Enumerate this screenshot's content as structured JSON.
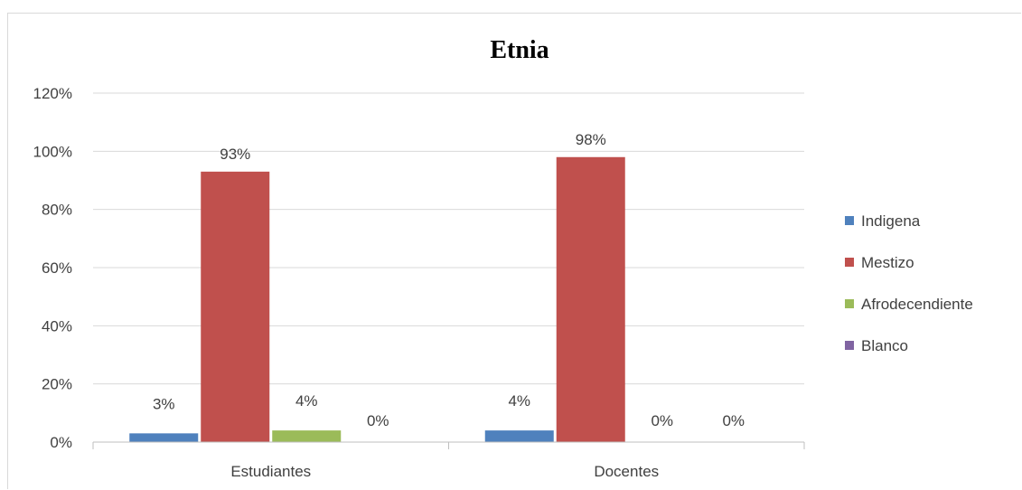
{
  "chart_data": {
    "type": "bar",
    "title": "Etnia",
    "categories": [
      "Estudiantes",
      "Docentes"
    ],
    "series": [
      {
        "name": "Indigena",
        "color": "#4f81bd",
        "values": [
          3,
          4
        ]
      },
      {
        "name": "Mestizo",
        "color": "#c0504d",
        "values": [
          93,
          98
        ]
      },
      {
        "name": "Afrodecendiente",
        "color": "#9bbb59",
        "values": [
          4,
          0
        ]
      },
      {
        "name": "Blanco",
        "color": "#8064a2",
        "values": [
          0,
          0
        ]
      }
    ],
    "data_labels": [
      [
        "3%",
        "93%",
        "4%",
        "0%"
      ],
      [
        "4%",
        "98%",
        "0%",
        "0%"
      ]
    ],
    "ylim": [
      0,
      120
    ],
    "yticks": [
      "0%",
      "20%",
      "40%",
      "60%",
      "80%",
      "100%",
      "120%"
    ],
    "ytick_values": [
      0,
      20,
      40,
      60,
      80,
      100,
      120
    ],
    "grid": true,
    "legend": "right",
    "xlabel": "",
    "ylabel": ""
  }
}
